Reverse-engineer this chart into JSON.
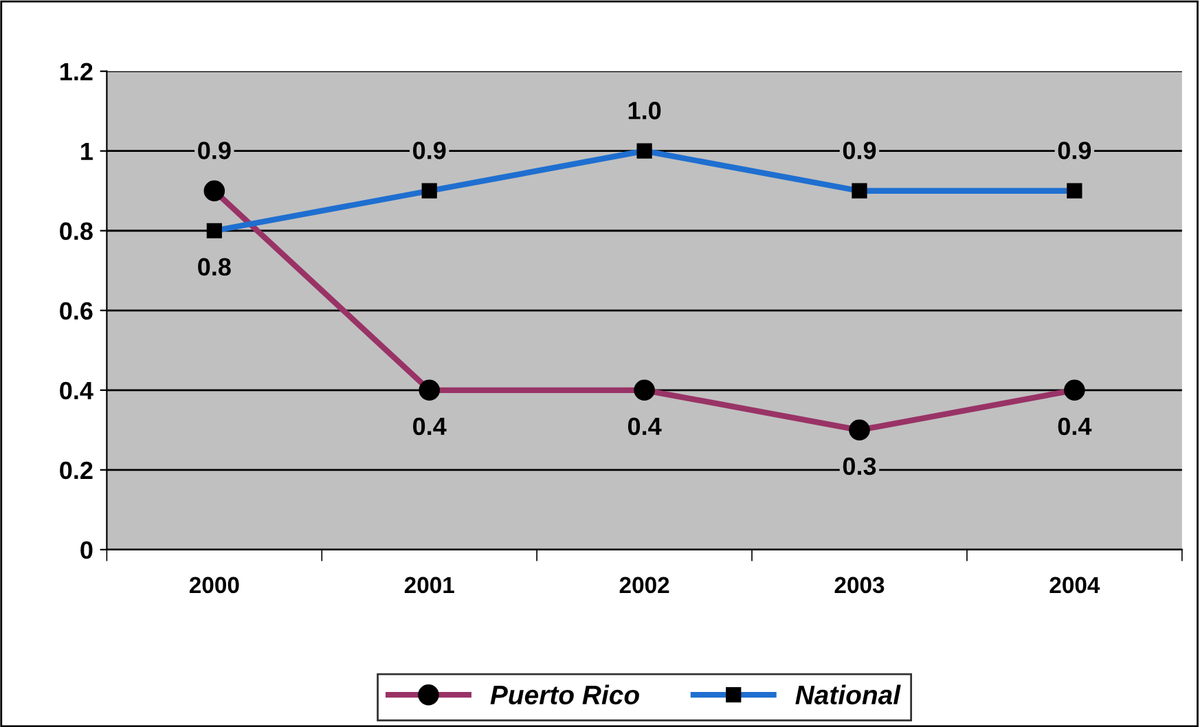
{
  "chart_data": {
    "type": "line",
    "categories": [
      "2000",
      "2001",
      "2002",
      "2003",
      "2004"
    ],
    "series": [
      {
        "name": "Puerto Rico",
        "color": "#993366",
        "marker": "circle",
        "values": [
          0.9,
          0.4,
          0.4,
          0.3,
          0.4
        ],
        "value_labels": [
          "0.9",
          "0.4",
          "0.4",
          "0.3",
          "0.4"
        ]
      },
      {
        "name": "National",
        "color": "#1f6fd0",
        "marker": "square",
        "values": [
          0.8,
          0.9,
          1.0,
          0.9,
          0.9
        ],
        "value_labels": [
          "0.8",
          "0.9",
          "1.0",
          "0.9",
          "0.9"
        ]
      }
    ],
    "ylim": [
      0,
      1.2
    ],
    "yticks": [
      0,
      {
        "value": 0.2,
        "label": "0.2"
      },
      {
        "value": 0.4,
        "label": "0.4"
      },
      {
        "value": 0.6,
        "label": "0.6"
      },
      {
        "value": 0.8,
        "label": "0.8"
      },
      1,
      {
        "value": 1.2,
        "label": "1.2"
      }
    ],
    "grid": "y",
    "legend": "bottom",
    "line_style": "solid"
  }
}
